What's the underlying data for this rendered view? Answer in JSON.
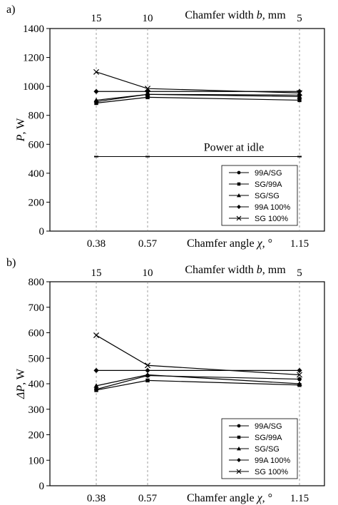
{
  "chart_data": [
    {
      "type": "line",
      "panel_label": "a)",
      "x": [
        "0.38",
        "0.57",
        "1.15"
      ],
      "top_ticks": [
        "15",
        "10",
        "5"
      ],
      "top_axis_label": "Chamfer width b, mm",
      "xlabel": "Chamfer angle χ, °",
      "ylabel": "P, W",
      "ylim": [
        0,
        1400
      ],
      "yticks": [
        "0",
        "200",
        "400",
        "600",
        "800",
        "1000",
        "1200",
        "1400"
      ],
      "grid": "vertical dashed at data x positions",
      "legend_position": "bottom-right",
      "annotation": {
        "text": "Power at idle",
        "value": 515
      },
      "series": [
        {
          "name": "99A/SG",
          "marker": "circle",
          "values": [
            895,
            945,
            940
          ]
        },
        {
          "name": "SG/99A",
          "marker": "square",
          "values": [
            885,
            925,
            905
          ]
        },
        {
          "name": "SG/SG",
          "marker": "triangle",
          "values": [
            905,
            945,
            930
          ]
        },
        {
          "name": "99A 100%",
          "marker": "diamond",
          "values": [
            965,
            965,
            965
          ]
        },
        {
          "name": "SG 100%",
          "marker": "cross",
          "values": [
            1100,
            985,
            955
          ]
        }
      ]
    },
    {
      "type": "line",
      "panel_label": "b)",
      "x": [
        "0.38",
        "0.57",
        "1.15"
      ],
      "top_ticks": [
        "15",
        "10",
        "5"
      ],
      "top_axis_label": "Chamfer width b, mm",
      "xlabel": "Chamfer angle χ, °",
      "ylabel": "ΔP, W",
      "ylim": [
        0,
        800
      ],
      "yticks": [
        "0",
        "100",
        "200",
        "300",
        "400",
        "500",
        "600",
        "700",
        "800"
      ],
      "grid": "vertical dashed at data x positions",
      "legend_position": "bottom-right",
      "series": [
        {
          "name": "99A/SG",
          "marker": "circle",
          "values": [
            378,
            432,
            418
          ]
        },
        {
          "name": "SG/99A",
          "marker": "square",
          "values": [
            375,
            413,
            395
          ]
        },
        {
          "name": "SG/SG",
          "marker": "triangle",
          "values": [
            392,
            435,
            400
          ]
        },
        {
          "name": "99A 100%",
          "marker": "diamond",
          "values": [
            452,
            452,
            452
          ]
        },
        {
          "name": "SG 100%",
          "marker": "cross",
          "values": [
            590,
            472,
            435
          ]
        }
      ]
    }
  ]
}
